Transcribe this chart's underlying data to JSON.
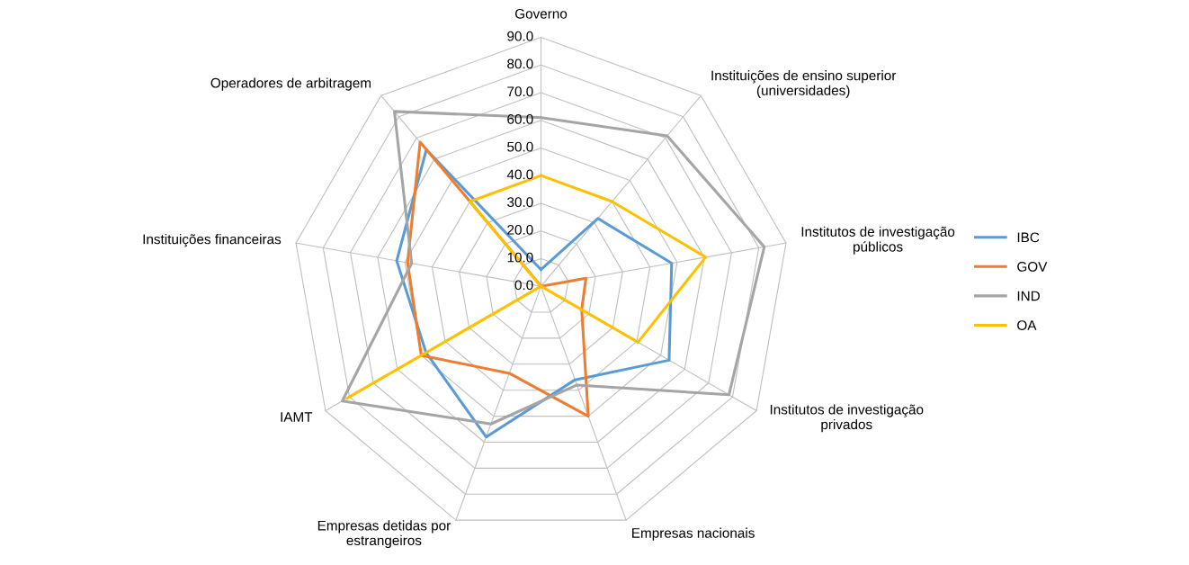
{
  "chart_data": {
    "type": "radar",
    "categories": [
      "Governo",
      "Instituições de ensino superior\n(universidades)",
      "Institutos de investigação\npúblicos",
      "Institutos de investigação\nprivados",
      "Empresas nacionais",
      "Empresas detidas por\nestrangeiros",
      "IAMT",
      "Instituições financeiras",
      "Operadores de arbitragem"
    ],
    "series": [
      {
        "name": "IBC",
        "color": "#5b9bd5",
        "values": [
          6,
          32,
          48,
          53.5,
          36,
          58,
          48,
          53,
          64.5
        ]
      },
      {
        "name": "GOV",
        "color": "#ed7d31",
        "values": [
          0,
          0,
          16.5,
          17,
          50,
          33.5,
          50,
          49,
          68
        ]
      },
      {
        "name": "IND",
        "color": "#a5a5a5",
        "values": [
          61,
          71,
          82,
          78.5,
          38,
          53,
          83,
          47.5,
          82.5
        ]
      },
      {
        "name": "OA",
        "color": "#ffc000",
        "values": [
          40,
          40,
          60.5,
          40.5,
          0,
          0,
          81,
          0,
          40
        ]
      }
    ],
    "ylim": [
      0,
      90
    ],
    "yticks": [
      {
        "value": 0,
        "label": "0.0"
      },
      {
        "value": 10,
        "label": "10.0"
      },
      {
        "value": 20,
        "label": "20.0"
      },
      {
        "value": 30,
        "label": "30.0"
      },
      {
        "value": 40,
        "label": "40.0"
      },
      {
        "value": 50,
        "label": "50.0"
      },
      {
        "value": 60,
        "label": "60.0"
      },
      {
        "value": 70,
        "label": "70.0"
      },
      {
        "value": 80,
        "label": "80.0"
      },
      {
        "value": 90,
        "label": "90.0"
      }
    ],
    "grid": true,
    "legend": "right",
    "marker": "none",
    "line_style": "solid"
  }
}
